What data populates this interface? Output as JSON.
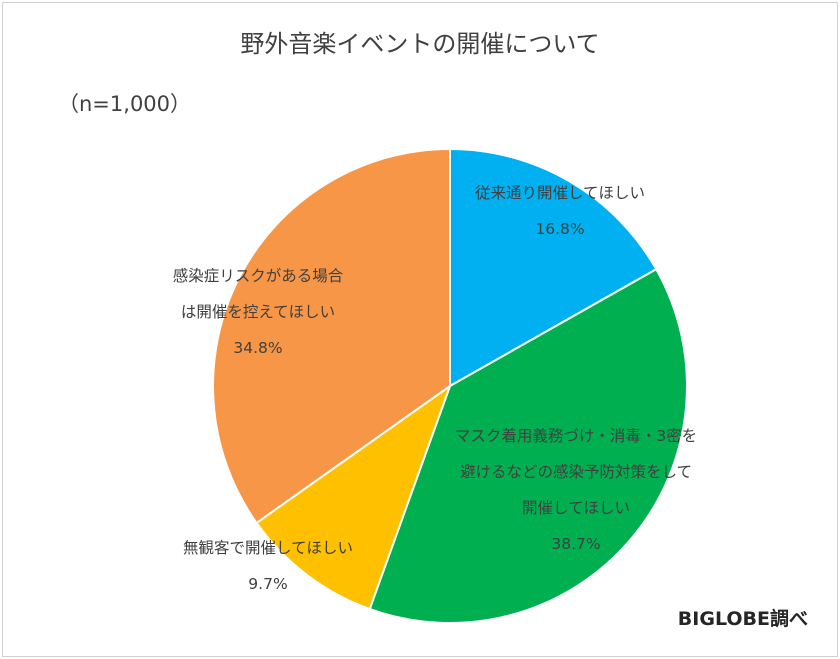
{
  "chart_data": {
    "type": "pie",
    "title": "野外音楽イベントの開催について",
    "subtitle": "（n=1,000）",
    "source": "BIGLOBE調べ",
    "slices": [
      {
        "lines": [
          "従来通り開催してほしい"
        ],
        "value": 16.8,
        "value_label": "16.8%",
        "color": "#00B0F0"
      },
      {
        "lines": [
          "マスク着用義務づけ・消毒・3密を",
          "避けるなどの感染予防対策をして",
          "開催してほしい"
        ],
        "value": 38.7,
        "value_label": "38.7%",
        "color": "#00B050"
      },
      {
        "lines": [
          "無観客で開催してほしい"
        ],
        "value": 9.7,
        "value_label": "9.7%",
        "color": "#FFC000"
      },
      {
        "lines": [
          "感染症リスクがある場合",
          "は開催を控えてほしい"
        ],
        "value": 34.8,
        "value_label": "34.8%",
        "color": "#F79646"
      }
    ],
    "legend": "none",
    "start_angle": "12 o'clock",
    "direction": "clockwise"
  }
}
